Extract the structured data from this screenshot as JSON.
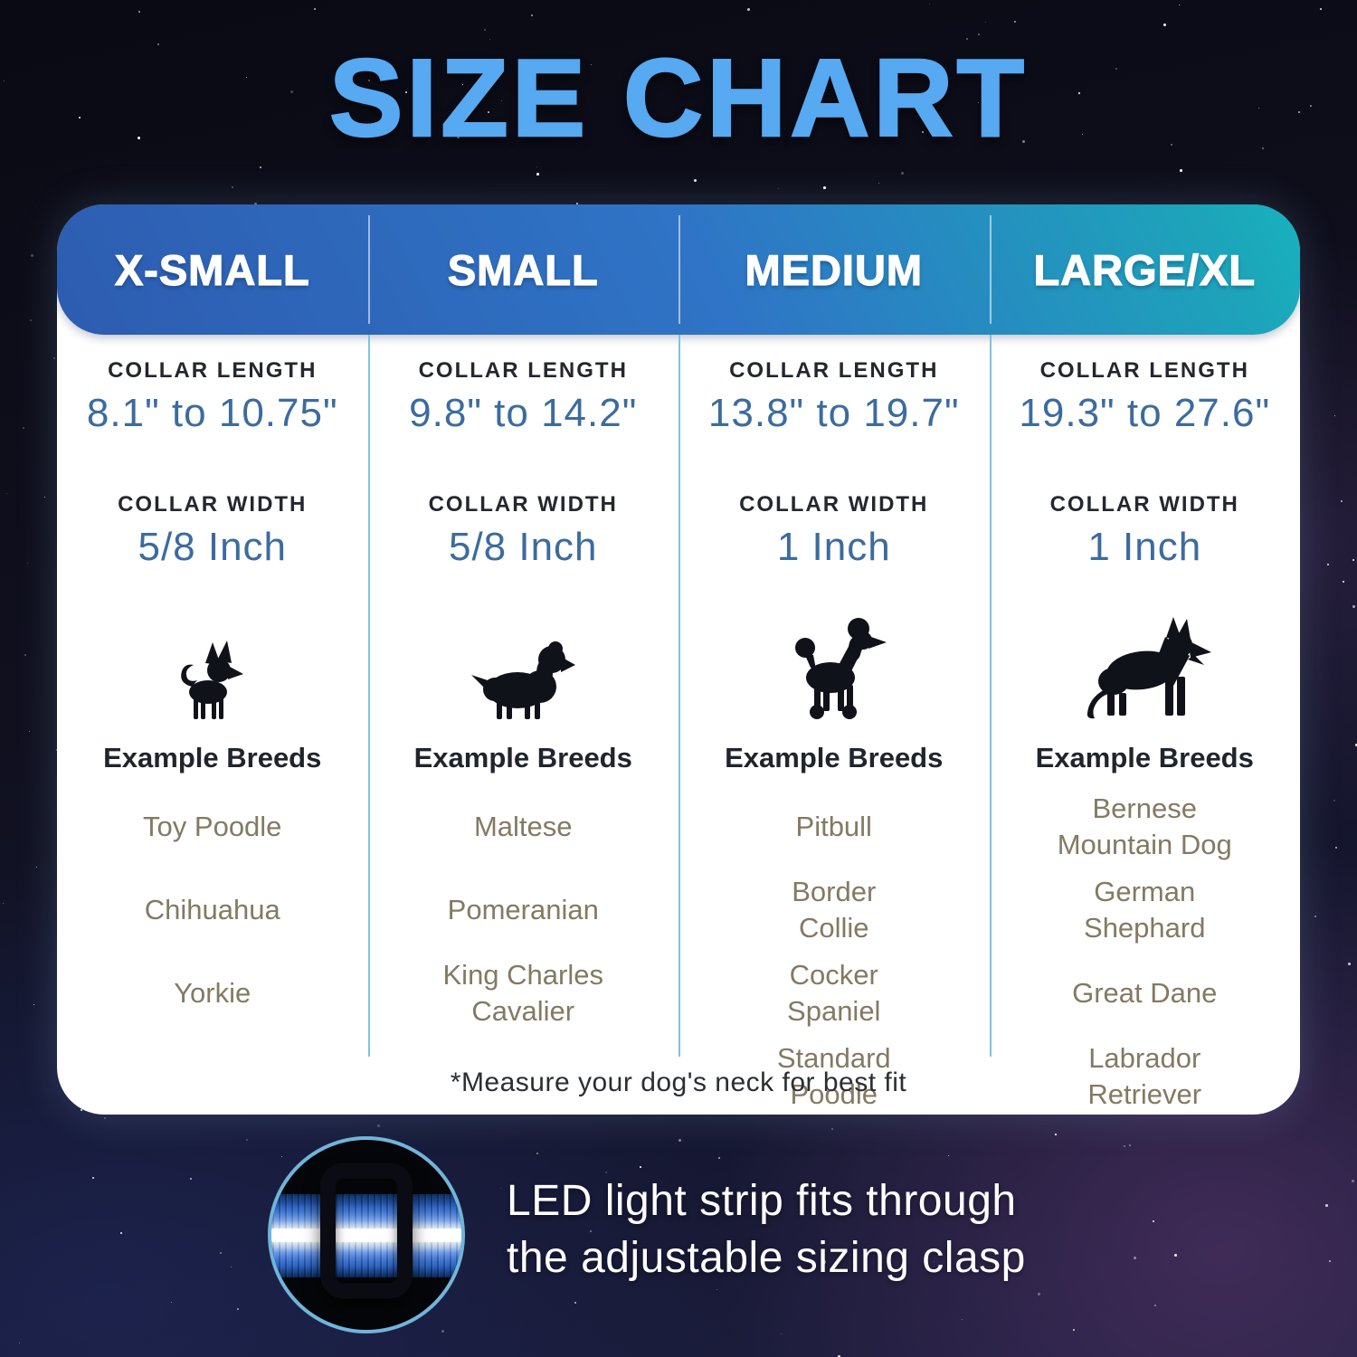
{
  "title": "SIZE CHART",
  "table": {
    "columns": [
      {
        "size_label": "X-SMALL",
        "collar_length_label": "COLLAR LENGTH",
        "collar_length": "8.1\" to 10.75\"",
        "collar_width_label": "COLLAR WIDTH",
        "collar_width": "5/8 Inch",
        "icon": "chihuahua-silhouette",
        "example_breeds_label": "Example Breeds",
        "breeds": [
          "Toy Poodle",
          "Chihuahua",
          "Yorkie"
        ]
      },
      {
        "size_label": "SMALL",
        "collar_length_label": "COLLAR LENGTH",
        "collar_length": "9.8\" to 14.2\"",
        "collar_width_label": "COLLAR WIDTH",
        "collar_width": "5/8 Inch",
        "icon": "cavalier-spaniel-silhouette",
        "example_breeds_label": "Example Breeds",
        "breeds": [
          "Maltese",
          "Pomeranian",
          "King Charles\nCavalier"
        ]
      },
      {
        "size_label": "MEDIUM",
        "collar_length_label": "COLLAR LENGTH",
        "collar_length": "13.8\" to 19.7\"",
        "collar_width_label": "COLLAR WIDTH",
        "collar_width": "1 Inch",
        "icon": "poodle-silhouette",
        "example_breeds_label": "Example Breeds",
        "breeds": [
          "Pitbull",
          "Border\nCollie",
          "Cocker\nSpaniel",
          "Standard\nPoodle"
        ]
      },
      {
        "size_label": "LARGE/XL",
        "collar_length_label": "COLLAR LENGTH",
        "collar_length": "19.3\" to 27.6\"",
        "collar_width_label": "COLLAR WIDTH",
        "collar_width": "1 Inch",
        "icon": "german-shepherd-silhouette",
        "example_breeds_label": "Example Breeds",
        "breeds": [
          "Bernese\nMountain Dog",
          "German\nShephard",
          "Great Dane",
          "Labrador\nRetriever"
        ]
      }
    ],
    "footnote": "*Measure your dog's neck for best fit"
  },
  "footer": {
    "caption_line1": "LED light strip fits through",
    "caption_line2": "the adjustable sizing clasp",
    "image": "collar-clasp-photo"
  },
  "colors": {
    "title_blue": "#57a9f1",
    "header_gradient_left": "#2d5cb0",
    "header_gradient_right": "#17b2bf",
    "value_blue": "#3c6b9f",
    "breed_tan": "#837a63",
    "divider_blue": "#7ec3dc",
    "circle_ring": "#71b4da"
  },
  "chart_data": {
    "type": "table",
    "title": "SIZE CHART",
    "columns": [
      "X-SMALL",
      "SMALL",
      "MEDIUM",
      "LARGE/XL"
    ],
    "rows": [
      {
        "label": "Collar Length",
        "values": [
          "8.1\" to 10.75\"",
          "9.8\" to 14.2\"",
          "13.8\" to 19.7\"",
          "19.3\" to 27.6\""
        ]
      },
      {
        "label": "Collar Width",
        "values": [
          "5/8 Inch",
          "5/8 Inch",
          "1 Inch",
          "1 Inch"
        ]
      },
      {
        "label": "Example Breeds",
        "values": [
          "Toy Poodle, Chihuahua, Yorkie",
          "Maltese, Pomeranian, King Charles Cavalier",
          "Pitbull, Border Collie, Cocker Spaniel, Standard Poodle",
          "Bernese Mountain Dog, German Shephard, Great Dane, Labrador Retriever"
        ]
      }
    ],
    "footnote": "*Measure your dog's neck for best fit",
    "caption": "LED light strip fits through the adjustable sizing clasp"
  }
}
